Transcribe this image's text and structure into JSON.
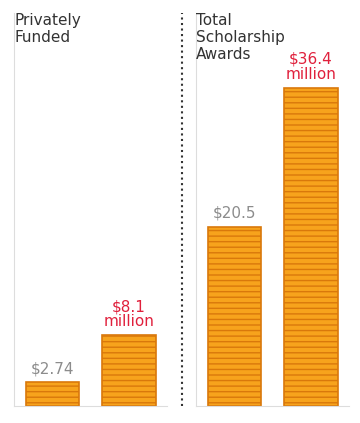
{
  "chart_data": [
    {
      "type": "bar",
      "title": "Privately\nFunded",
      "categories": [
        null,
        null
      ],
      "values": [
        2.74,
        8.1
      ],
      "value_labels": [
        "$2.74",
        "$8.1\nmillion"
      ],
      "data_labels": true,
      "color": "#f7a31c",
      "ylim": [
        0,
        45
      ],
      "tick_labels": false
    },
    {
      "type": "bar",
      "title": "Total\nScholarship\nAwards",
      "categories": [
        null,
        null
      ],
      "values": [
        20.5,
        36.4
      ],
      "value_labels": [
        "$20.5",
        "$36.4\nmillion"
      ],
      "data_labels": true,
      "color": "#f7a31c",
      "ylim": [
        0,
        45
      ],
      "tick_labels": false
    }
  ]
}
